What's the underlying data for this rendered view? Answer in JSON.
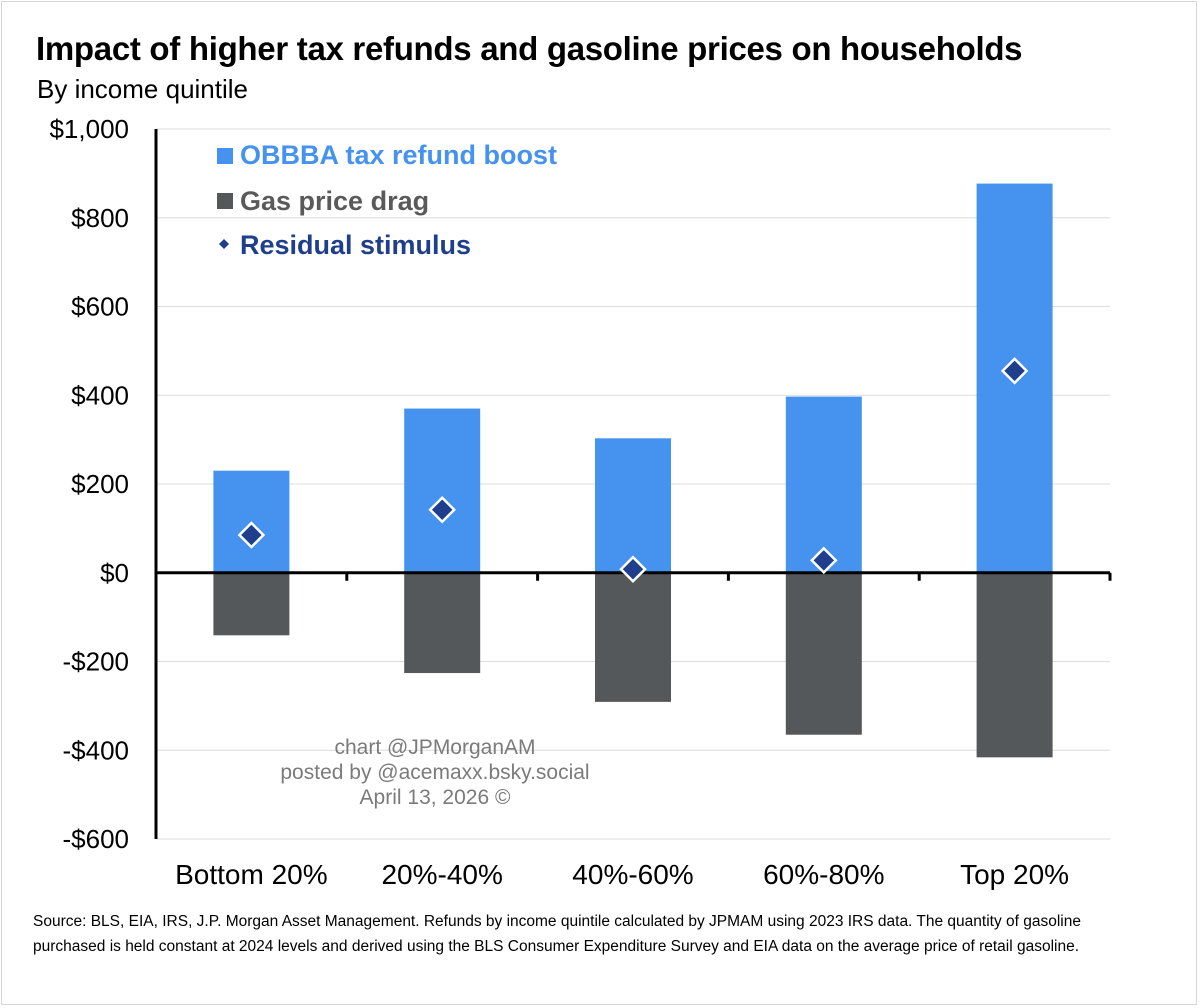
{
  "title": "Impact of higher tax refunds and gasoline prices on households",
  "subtitle": "By income quintile",
  "source_note": "Source: BLS, EIA, IRS, J.P. Morgan Asset Management. Refunds by income quintile calculated by JPMAM using 2023 IRS data. The quantity of gasoline purchased is held constant at 2024 levels and derived using the BLS Consumer Expenditure Survey and EIA data on the average price of retail gasoline.",
  "watermark": {
    "line1": "chart @JPMorganAM",
    "line2": "posted by @acemaxx.bsky.social",
    "line3": "April 13, 2026 ©"
  },
  "colors": {
    "refund": "#4592ef",
    "gas": "#55585b",
    "residual": "#1f3f8c",
    "gas_legend_text": "#5a5a5a"
  },
  "chart_data": {
    "type": "bar",
    "categories": [
      "Bottom 20%",
      "20%-40%",
      "40%-60%",
      "60%-80%",
      "Top 20%"
    ],
    "series": [
      {
        "name": "OBBBA tax refund boost",
        "kind": "bar",
        "values": [
          230,
          370,
          303,
          397,
          877
        ]
      },
      {
        "name": "Gas price drag",
        "kind": "bar",
        "values": [
          -141,
          -226,
          -291,
          -365,
          -416
        ]
      },
      {
        "name": "Residual stimulus",
        "kind": "marker",
        "values": [
          85,
          142,
          8,
          28,
          455
        ]
      }
    ],
    "ylim": [
      -600,
      1000
    ],
    "yticks": [
      1000,
      800,
      600,
      400,
      200,
      0,
      -200,
      -400,
      -600
    ],
    "ytick_labels": [
      "$1,000",
      "$800",
      "$600",
      "$400",
      "$200",
      "$0",
      "-$200",
      "-$400",
      "-$600"
    ],
    "xlabel": "",
    "ylabel": "",
    "grid": true,
    "legend_position": "top-left"
  }
}
